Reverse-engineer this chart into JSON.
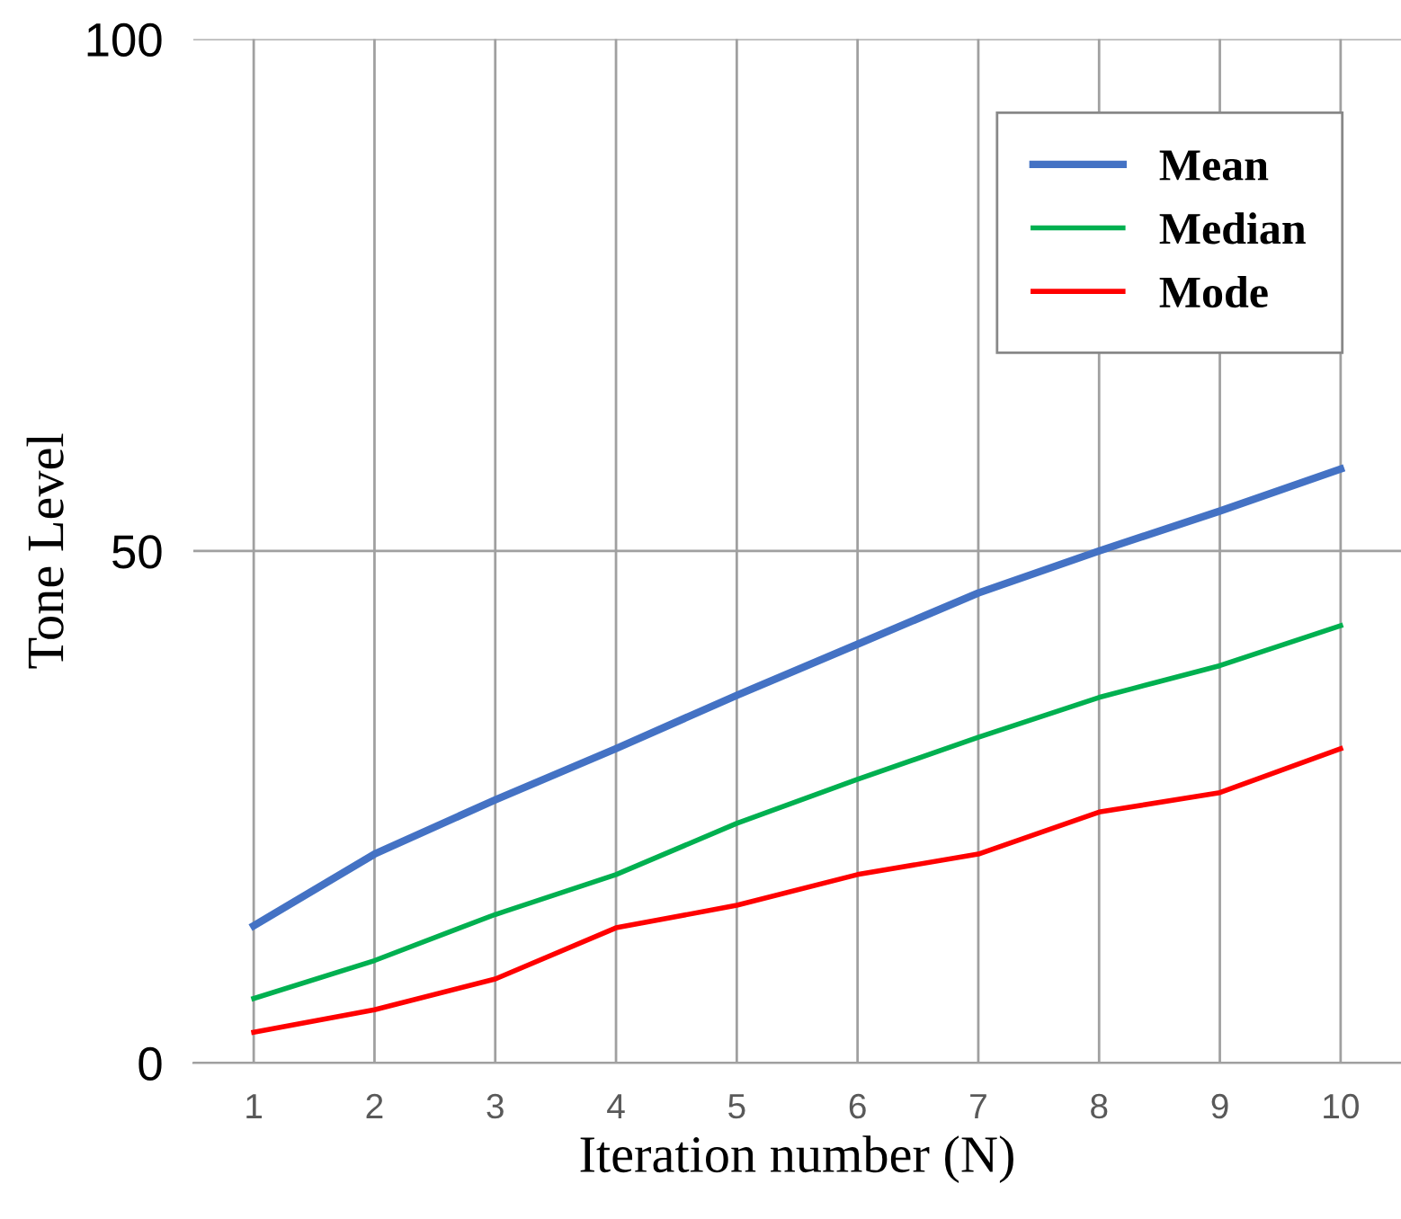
{
  "chart_data": {
    "type": "line",
    "xlabel": "Iteration number (N)",
    "ylabel": "Tone Level",
    "x": [
      1,
      2,
      3,
      4,
      5,
      6,
      7,
      8,
      9,
      10
    ],
    "series": [
      {
        "name": "Mean",
        "color": "#4472c4",
        "values": [
          13.4,
          20.4,
          25.7,
          30.7,
          35.9,
          40.9,
          45.9,
          50,
          53.9,
          58
        ]
      },
      {
        "name": "Median",
        "color": "#00b050",
        "values": [
          6.3,
          10,
          14.5,
          18.4,
          23.4,
          27.7,
          31.8,
          35.7,
          38.8,
          42.7
        ]
      },
      {
        "name": "Mode",
        "color": "#ff0000",
        "values": [
          3,
          5.2,
          8.2,
          13.2,
          15.4,
          18.4,
          20.4,
          24.5,
          26.4,
          30.7
        ]
      }
    ],
    "xlim": [
      0.5,
      10.5
    ],
    "xticks": [
      1,
      2,
      3,
      4,
      5,
      6,
      7,
      8,
      9,
      10
    ],
    "ylim": [
      0,
      100
    ],
    "yticks": [
      0,
      50,
      100
    ],
    "grid": true,
    "legend": "top right",
    "marker": "none",
    "line_style": "solid"
  }
}
